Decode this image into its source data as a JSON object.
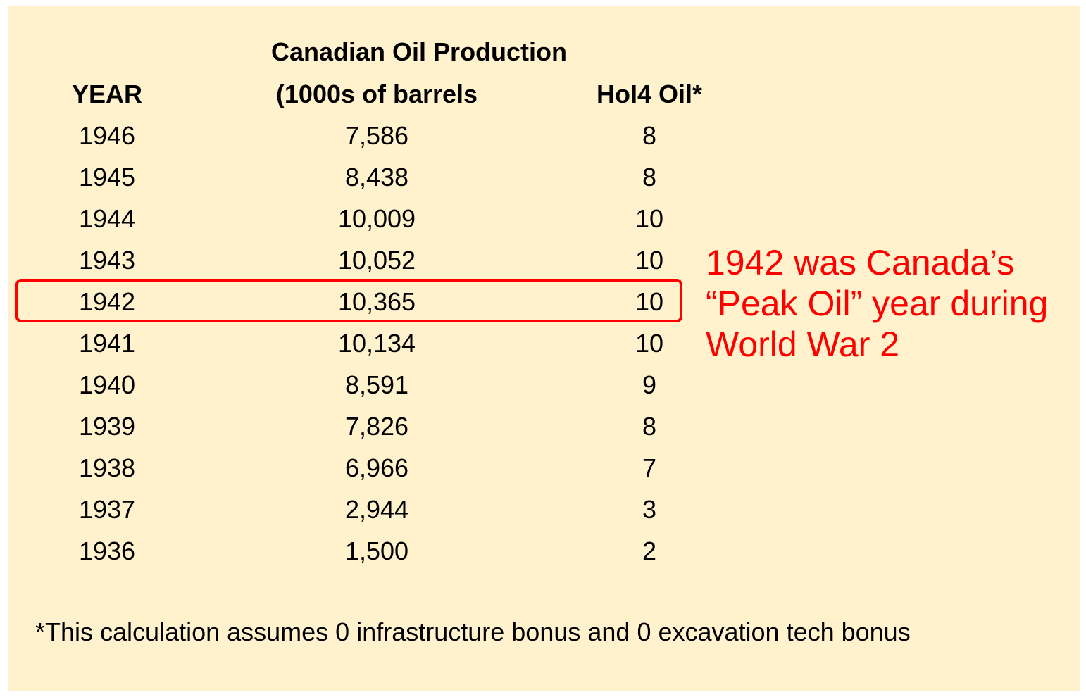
{
  "chart_data": {
    "type": "table",
    "title": "Canadian Oil Production",
    "columns": [
      "YEAR",
      "Canadian Oil Production (1000s of barrels",
      "HoI4 Oil*"
    ],
    "header": {
      "year": "YEAR",
      "production_line1": "Canadian Oil Production",
      "production_line2": "(1000s of barrels",
      "hoi4": "HoI4 Oil*"
    },
    "rows": [
      {
        "year": "1946",
        "production": "7,586",
        "hoi4": "8"
      },
      {
        "year": "1945",
        "production": "8,438",
        "hoi4": "8"
      },
      {
        "year": "1944",
        "production": "10,009",
        "hoi4": "10"
      },
      {
        "year": "1943",
        "production": "10,052",
        "hoi4": "10"
      },
      {
        "year": "1942",
        "production": "10,365",
        "hoi4": "10"
      },
      {
        "year": "1941",
        "production": "10,134",
        "hoi4": "10"
      },
      {
        "year": "1940",
        "production": "8,591",
        "hoi4": "9"
      },
      {
        "year": "1939",
        "production": "7,826",
        "hoi4": "8"
      },
      {
        "year": "1938",
        "production": "6,966",
        "hoi4": "7"
      },
      {
        "year": "1937",
        "production": "2,944",
        "hoi4": "3"
      },
      {
        "year": "1936",
        "production": "1,500",
        "hoi4": "2"
      }
    ],
    "highlighted_year": "1942",
    "annotation": "1942 was Canada’s\n“Peak Oil” year during\nWorld War 2",
    "footnote": "*This calculation assumes 0 infrastructure bonus and 0 excavation tech bonus"
  },
  "colors": {
    "background": "#fff2cc",
    "highlight": "#ff0000",
    "text": "#000000"
  }
}
